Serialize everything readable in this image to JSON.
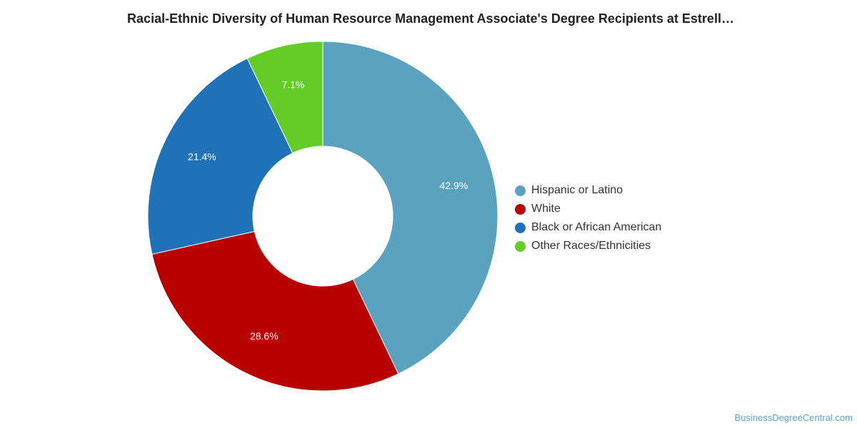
{
  "title": "Racial-Ethnic Diversity of Human Resource Management Associate's Degree Recipients at Estrell…",
  "watermark": "BusinessDegreeCentral.com",
  "chart_data": {
    "type": "pie",
    "variant": "donut",
    "title": "Racial-Ethnic Diversity of Human Resource Management Associate's Degree Recipients at Estrell…",
    "legend_position": "right",
    "categories": [
      "Hispanic or Latino",
      "White",
      "Black or African American",
      "Other Races/Ethnicities"
    ],
    "values": [
      42.9,
      28.6,
      21.4,
      7.1
    ],
    "labels": [
      "42.9%",
      "28.6%",
      "21.4%",
      "7.1%"
    ],
    "colors": [
      "#5ba2c0",
      "#b80000",
      "#1f72b8",
      "#63cc26"
    ]
  }
}
